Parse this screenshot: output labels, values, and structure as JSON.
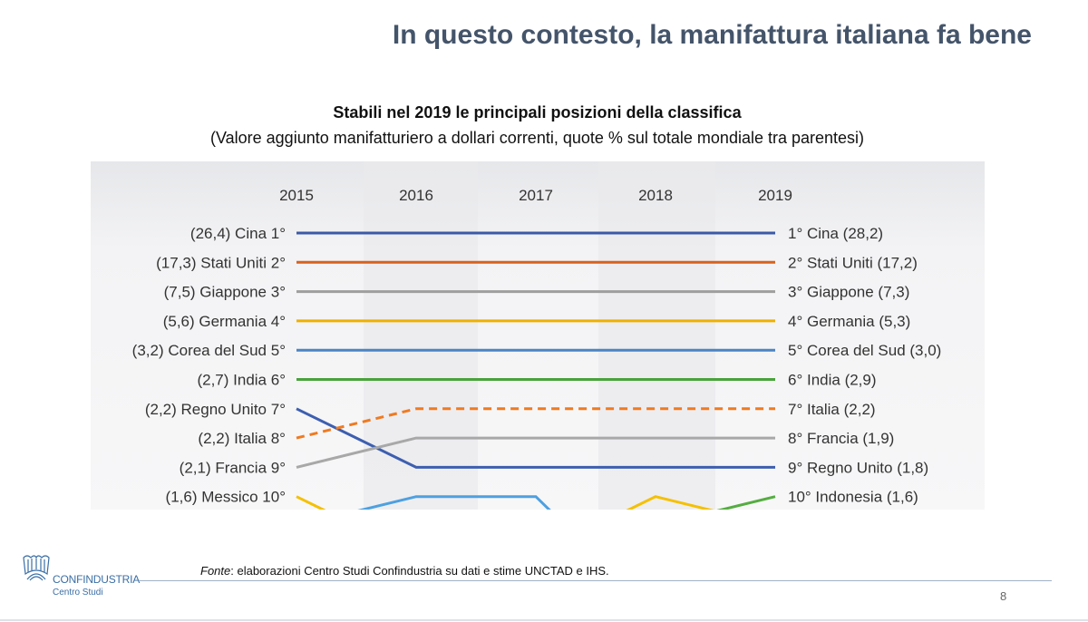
{
  "title": "In questo contesto, la manifattura italiana fa bene",
  "subtitle": "Stabili nel 2019 le principali posizioni della classifica",
  "subtitle2": "(Valore aggiunto manifatturiero a dollari correnti, quote % sul totale mondiale tra parentesi)",
  "footer": {
    "source_label": "Fonte",
    "source_text": ": elaborazioni Centro Studi Confindustria su dati e stime UNCTAD e IHS.",
    "page": "8"
  },
  "logo": {
    "name": "CONFINDUSTRIA",
    "sub": "Centro Studi"
  },
  "chart_data": {
    "type": "line",
    "subtype": "bump",
    "x": [
      "2015",
      "2016",
      "2017",
      "2018",
      "2019"
    ],
    "y_axis": "rank",
    "y_visible_range": [
      1,
      10
    ],
    "grid": false,
    "series": [
      {
        "name": "Cina",
        "ranks": [
          1,
          1,
          1,
          1,
          1
        ],
        "color": "#3b59a8",
        "left_label": "(26,4) Cina 1°",
        "right_label": "1° Cina (28,2)"
      },
      {
        "name": "Stati Uniti",
        "ranks": [
          2,
          2,
          2,
          2,
          2
        ],
        "color": "#d7621c",
        "left_label": "(17,3) Stati Uniti 2°",
        "right_label": "2° Stati Uniti (17,2)"
      },
      {
        "name": "Giappone",
        "ranks": [
          3,
          3,
          3,
          3,
          3
        ],
        "color": "#9e9e9e",
        "left_label": "(7,5) Giappone 3°",
        "right_label": "3° Giappone (7,3)"
      },
      {
        "name": "Germania",
        "ranks": [
          4,
          4,
          4,
          4,
          4
        ],
        "color": "#eeb100",
        "left_label": "(5,6) Germania 4°",
        "right_label": "4° Germania (5,3)"
      },
      {
        "name": "Corea del Sud",
        "ranks": [
          5,
          5,
          5,
          5,
          5
        ],
        "color": "#4a84c4",
        "left_label": "(3,2) Corea del Sud 5°",
        "right_label": "5° Corea del Sud (3,0)"
      },
      {
        "name": "India",
        "ranks": [
          6,
          6,
          6,
          6,
          6
        ],
        "color": "#48a33a",
        "left_label": "(2,7) India 6°",
        "right_label": "6° India (2,9)"
      },
      {
        "name": "Regno Unito",
        "ranks": [
          7,
          9,
          9,
          9,
          9
        ],
        "color": "#3d5fb0",
        "left_label": "(2,2) Regno Unito 7°",
        "right_label": "9° Regno Unito (1,8)"
      },
      {
        "name": "Italia",
        "ranks": [
          8,
          7,
          7,
          7,
          7
        ],
        "color": "#f07a20",
        "dashed": true,
        "left_label": "(2,2) Italia 8°",
        "right_label": "7° Italia (2,2)"
      },
      {
        "name": "Francia",
        "ranks": [
          9,
          8,
          8,
          8,
          8
        ],
        "color": "#a8a8a8",
        "left_label": "(2,1) Francia 9°",
        "right_label": "8° Francia (1,9)"
      },
      {
        "name": "Messico",
        "ranks": [
          10,
          12,
          12,
          10,
          11
        ],
        "color": "#f5c000",
        "left_label": "(1,6) Messico 10°",
        "right_label": ""
      },
      {
        "name": "",
        "ranks": [
          11,
          10,
          10,
          14,
          14
        ],
        "color": "#4ea0e0",
        "left_label": "",
        "right_label": ""
      },
      {
        "name": "Indonesia",
        "ranks": [
          14,
          14,
          14,
          11,
          10
        ],
        "color": "#55ad40",
        "left_label": "",
        "right_label": "10° Indonesia (1,6)"
      }
    ]
  }
}
